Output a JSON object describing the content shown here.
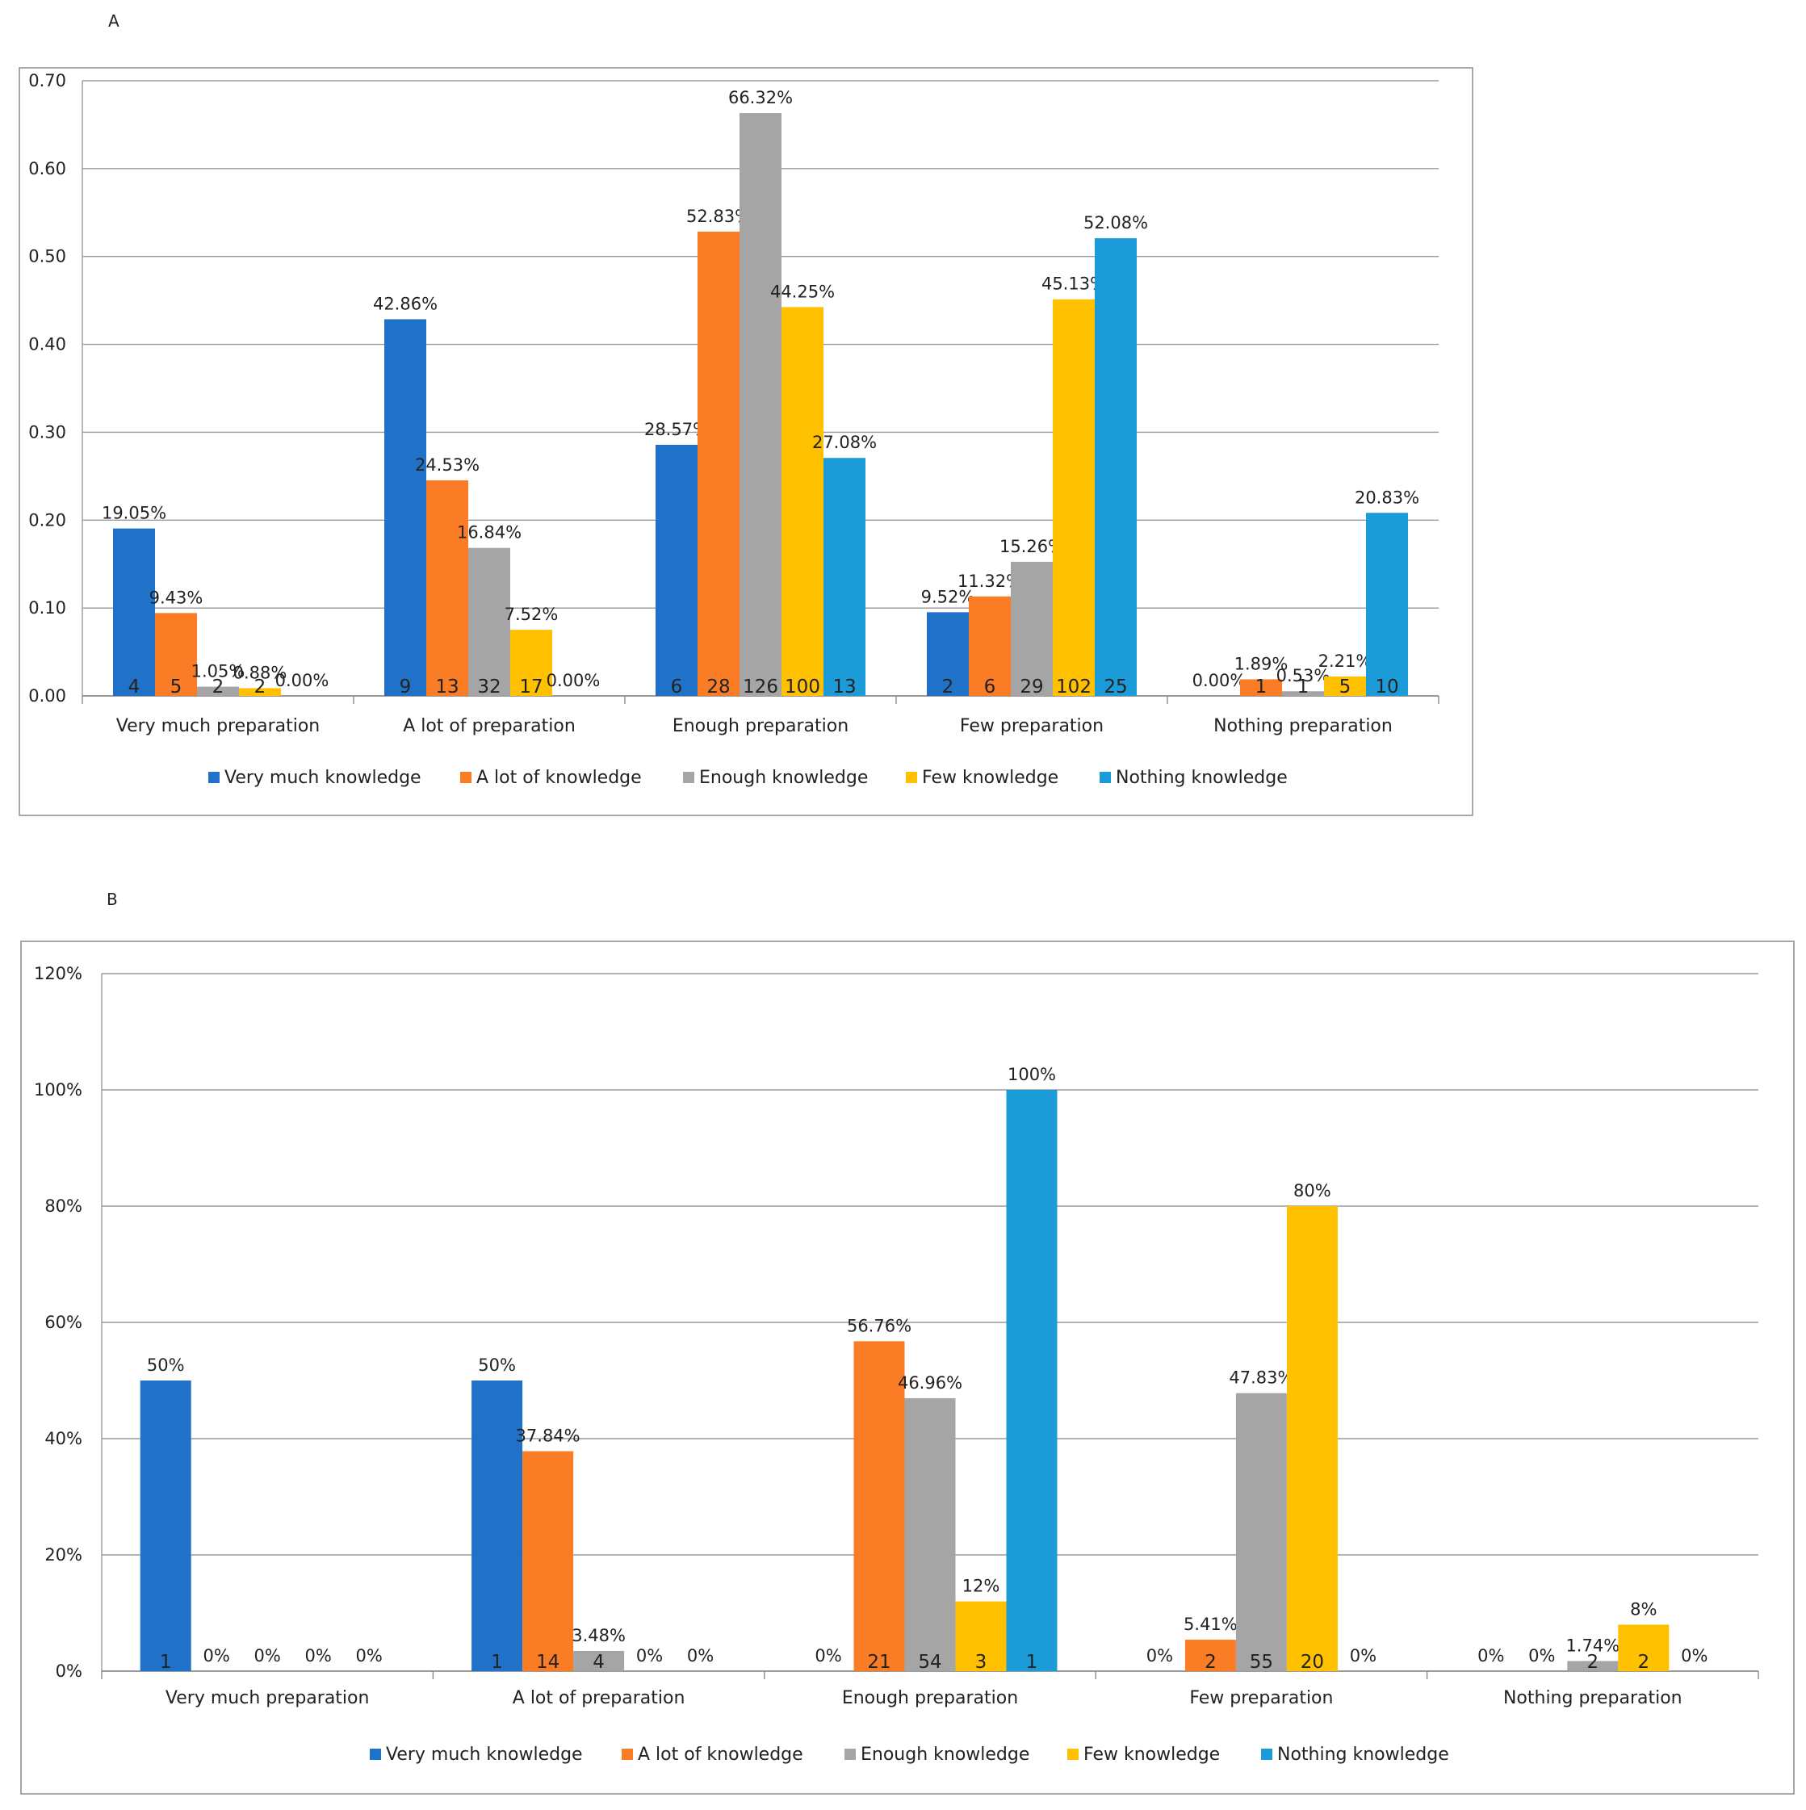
{
  "panels": [
    {
      "letter": "A"
    },
    {
      "letter": "B"
    }
  ],
  "chart_data": [
    {
      "type": "bar",
      "panel": "A",
      "categories": [
        "Very much preparation",
        "A lot of preparation",
        "Enough preparation",
        "Few preparation",
        "Nothing preparation"
      ],
      "ylim": [
        0,
        0.7
      ],
      "yticks": [
        0.0,
        0.1,
        0.2,
        0.3,
        0.4,
        0.5,
        0.6,
        0.7
      ],
      "ytick_labels": [
        "0.00",
        "0.10",
        "0.20",
        "0.30",
        "0.40",
        "0.50",
        "0.60",
        "0.70"
      ],
      "grid": true,
      "legend_position": "bottom",
      "series": [
        {
          "name": "Very much knowledge",
          "color": "#1F72C8",
          "values": [
            0.1905,
            0.4286,
            0.2857,
            0.0952,
            0.0
          ],
          "pct_labels": [
            "19.05%",
            "42.86%",
            "28.57%",
            "9.52%",
            "0.00%"
          ],
          "count_labels": [
            "4",
            "9",
            "6",
            "2",
            ""
          ]
        },
        {
          "name": "A lot of knowledge",
          "color": "#FA7D25",
          "values": [
            0.0943,
            0.2453,
            0.5283,
            0.1132,
            0.0189
          ],
          "pct_labels": [
            "9.43%",
            "24.53%",
            "52.83%",
            "11.32%",
            "1.89%"
          ],
          "count_labels": [
            "5",
            "13",
            "28",
            "6",
            "1"
          ]
        },
        {
          "name": "Enough knowledge",
          "color": "#A5A5A5",
          "values": [
            0.0105,
            0.1684,
            0.6632,
            0.1526,
            0.0053
          ],
          "pct_labels": [
            "1.05%",
            "16.84%",
            "66.32%",
            "15.26%",
            "0.53%"
          ],
          "count_labels": [
            "2",
            "32",
            "126",
            "29",
            "1"
          ]
        },
        {
          "name": "Few knowledge",
          "color": "#FFC000",
          "values": [
            0.0088,
            0.0752,
            0.4425,
            0.4513,
            0.0221
          ],
          "pct_labels": [
            "0.88%",
            "7.52%",
            "44.25%",
            "45.13%",
            "2.21%"
          ],
          "count_labels": [
            "2",
            "17",
            "100",
            "102",
            "5"
          ]
        },
        {
          "name": "Nothing knowledge",
          "color": "#1B9BD8",
          "values": [
            0.0,
            0.0,
            0.2708,
            0.5208,
            0.2083
          ],
          "pct_labels": [
            "0.00%",
            "0.00%",
            "27.08%",
            "52.08%",
            "20.83%"
          ],
          "count_labels": [
            "",
            "",
            "13",
            "25",
            "10"
          ]
        }
      ]
    },
    {
      "type": "bar",
      "panel": "B",
      "categories": [
        "Very much preparation",
        "A lot of preparation",
        "Enough preparation",
        "Few preparation",
        "Nothing preparation"
      ],
      "ylim": [
        0,
        1.2
      ],
      "yticks": [
        0,
        0.2,
        0.4,
        0.6,
        0.8,
        1.0,
        1.2
      ],
      "ytick_labels": [
        "0%",
        "20%",
        "40%",
        "60%",
        "80%",
        "100%",
        "120%"
      ],
      "grid": true,
      "legend_position": "bottom",
      "series": [
        {
          "name": "Very much knowledge",
          "color": "#1F72C8",
          "values": [
            0.5,
            0.5,
            0.0,
            0.0,
            0.0
          ],
          "pct_labels": [
            "50%",
            "50%",
            "0%",
            "0%",
            "0%"
          ],
          "count_labels": [
            "1",
            "1",
            "",
            "",
            ""
          ]
        },
        {
          "name": "A lot of knowledge",
          "color": "#FA7D25",
          "values": [
            0.0,
            0.3784,
            0.5676,
            0.0541,
            0.0
          ],
          "pct_labels": [
            "0%",
            "37.84%",
            "56.76%",
            "5.41%",
            "0%"
          ],
          "count_labels": [
            "",
            "14",
            "21",
            "2",
            ""
          ]
        },
        {
          "name": "Enough knowledge",
          "color": "#A5A5A5",
          "values": [
            0.0,
            0.0348,
            0.4696,
            0.4783,
            0.0174
          ],
          "pct_labels": [
            "0%",
            "3.48%",
            "46.96%",
            "47.83%",
            "1.74%"
          ],
          "count_labels": [
            "",
            "4",
            "54",
            "55",
            "2"
          ]
        },
        {
          "name": "Few knowledge",
          "color": "#FFC000",
          "values": [
            0.0,
            0.0,
            0.12,
            0.8,
            0.08
          ],
          "pct_labels": [
            "0%",
            "0%",
            "12%",
            "80%",
            "8%"
          ],
          "count_labels": [
            "",
            "",
            "3",
            "20",
            "2"
          ]
        },
        {
          "name": "Nothing knowledge",
          "color": "#1B9BD8",
          "values": [
            0.0,
            0.0,
            1.0,
            0.0,
            0.0
          ],
          "pct_labels": [
            "0%",
            "0%",
            "100%",
            "0%",
            "0%"
          ],
          "count_labels": [
            "",
            "",
            "1",
            "",
            ""
          ]
        }
      ]
    }
  ]
}
